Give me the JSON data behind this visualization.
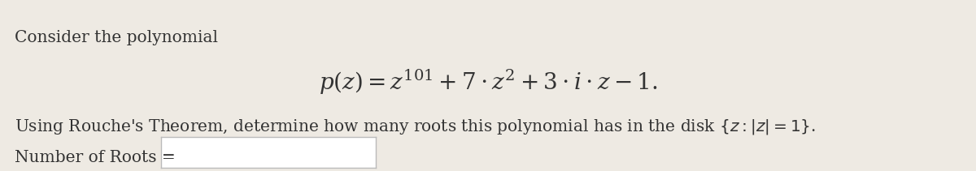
{
  "background_color": "#eeeae3",
  "line1_text": "Consider the polynomial",
  "formula": "$p(z) = z^{101} + 7 \\cdot z^2 + 3 \\cdot i \\cdot z - 1.$",
  "line3_text": "Using Rouche's Theorem, determine how many roots this polynomial has in the disk $\\{z : |z| = 1\\}$.",
  "line4_text": "Number of Roots =",
  "text_color": "#333333",
  "text_fontsize": 14.5,
  "formula_fontsize": 20,
  "box_facecolor": "#ffffff",
  "box_edgecolor": "#bbbbbb"
}
